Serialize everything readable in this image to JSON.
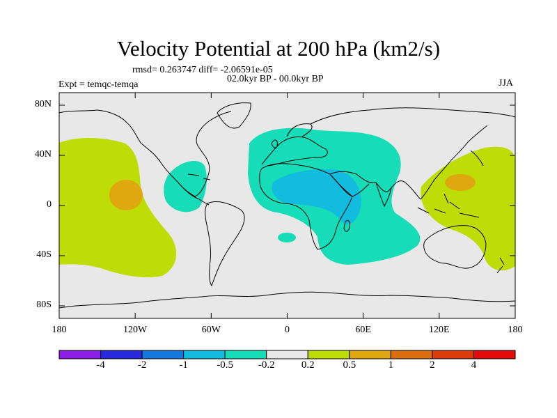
{
  "title": "Velocity Potential at 200 hPa (km2/s)",
  "stats_line": "rmsd= 0.263747  diff= -2.06591e-05",
  "period": "02.0kyr BP - 00.0kyr BP",
  "experiment": "Expt = temqc-temqa",
  "season": "JJA",
  "colors": {
    "ocean": "#e8e8e8",
    "pos_02_05": "#bedd06",
    "pos_05_1": "#dfa810",
    "neg_05_02": "#16dcb8",
    "neg_1_05": "#12bcde",
    "coast": "#000000"
  },
  "chart_data": {
    "type": "map",
    "projection": "cylindrical equidistant",
    "lon_range": [
      -180,
      180
    ],
    "lat_range": [
      -90,
      90
    ],
    "y_ticks": [
      {
        "value": 80,
        "label": "80N"
      },
      {
        "value": 40,
        "label": "40N"
      },
      {
        "value": 0,
        "label": "0"
      },
      {
        "value": -40,
        "label": "40S"
      },
      {
        "value": -80,
        "label": "80S"
      }
    ],
    "x_ticks": [
      {
        "value": -180,
        "label": "180"
      },
      {
        "value": -120,
        "label": "120W"
      },
      {
        "value": -60,
        "label": "60W"
      },
      {
        "value": 0,
        "label": "0"
      },
      {
        "value": 60,
        "label": "60E"
      },
      {
        "value": 120,
        "label": "120E"
      },
      {
        "value": 180,
        "label": "180"
      }
    ],
    "colorbar": {
      "labels": [
        "-4",
        "-2",
        "-1",
        "-0.5",
        "-0.2",
        "0.2",
        "0.5",
        "1",
        "2",
        "4"
      ],
      "colors": [
        "#8c1ee6",
        "#2828dc",
        "#1478dc",
        "#12bcde",
        "#16dcb8",
        "#e8e8e8",
        "#bedd06",
        "#dfa810",
        "#dc6e0f",
        "#dc3c0a",
        "#e60a0a"
      ]
    },
    "regions": [
      {
        "name": "East Pacific positive",
        "level": "0.2 to 0.5",
        "center": [
          -125,
          15
        ]
      },
      {
        "name": "East Pacific maximum",
        "level": "0.5 to 1",
        "center": [
          -122,
          10
        ]
      },
      {
        "name": "West Pacific positive",
        "level": "0.2 to 0.5",
        "center": [
          150,
          0
        ]
      },
      {
        "name": "West Pacific maximum",
        "level": "0.5 to 1",
        "center": [
          140,
          18
        ]
      },
      {
        "name": "Caribbean negative",
        "level": "-0.5 to -0.2",
        "center": [
          -75,
          15
        ]
      },
      {
        "name": "Africa / Eurasia negative",
        "level": "-0.5 to -0.2",
        "center": [
          20,
          20
        ]
      },
      {
        "name": "North Africa / Arabia minimum",
        "level": "-1 to -0.5",
        "center": [
          30,
          8
        ]
      },
      {
        "name": "South Atlantic small negative",
        "level": "-0.5 to -0.2",
        "center": [
          0,
          -25
        ]
      }
    ]
  }
}
